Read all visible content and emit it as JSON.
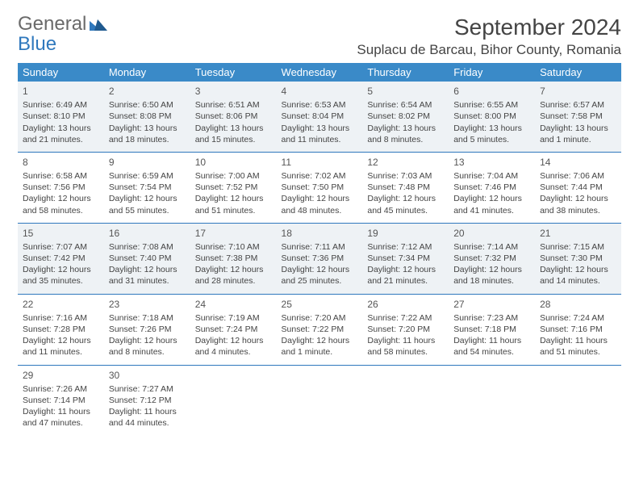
{
  "logo": {
    "text1": "General",
    "text2": "Blue"
  },
  "title": "September 2024",
  "location": "Suplacu de Barcau, Bihor County, Romania",
  "day_headers": [
    "Sunday",
    "Monday",
    "Tuesday",
    "Wednesday",
    "Thursday",
    "Friday",
    "Saturday"
  ],
  "colors": {
    "header_bg": "#3a8ac8",
    "header_text": "#ffffff",
    "border": "#2f78bd",
    "shaded_row": "#eef2f5",
    "logo_gray": "#6a6a6a",
    "logo_blue": "#2f78bd"
  },
  "weeks": [
    [
      {
        "n": "1",
        "sr": "6:49 AM",
        "ss": "8:10 PM",
        "dl": "13 hours and 21 minutes."
      },
      {
        "n": "2",
        "sr": "6:50 AM",
        "ss": "8:08 PM",
        "dl": "13 hours and 18 minutes."
      },
      {
        "n": "3",
        "sr": "6:51 AM",
        "ss": "8:06 PM",
        "dl": "13 hours and 15 minutes."
      },
      {
        "n": "4",
        "sr": "6:53 AM",
        "ss": "8:04 PM",
        "dl": "13 hours and 11 minutes."
      },
      {
        "n": "5",
        "sr": "6:54 AM",
        "ss": "8:02 PM",
        "dl": "13 hours and 8 minutes."
      },
      {
        "n": "6",
        "sr": "6:55 AM",
        "ss": "8:00 PM",
        "dl": "13 hours and 5 minutes."
      },
      {
        "n": "7",
        "sr": "6:57 AM",
        "ss": "7:58 PM",
        "dl": "13 hours and 1 minute."
      }
    ],
    [
      {
        "n": "8",
        "sr": "6:58 AM",
        "ss": "7:56 PM",
        "dl": "12 hours and 58 minutes."
      },
      {
        "n": "9",
        "sr": "6:59 AM",
        "ss": "7:54 PM",
        "dl": "12 hours and 55 minutes."
      },
      {
        "n": "10",
        "sr": "7:00 AM",
        "ss": "7:52 PM",
        "dl": "12 hours and 51 minutes."
      },
      {
        "n": "11",
        "sr": "7:02 AM",
        "ss": "7:50 PM",
        "dl": "12 hours and 48 minutes."
      },
      {
        "n": "12",
        "sr": "7:03 AM",
        "ss": "7:48 PM",
        "dl": "12 hours and 45 minutes."
      },
      {
        "n": "13",
        "sr": "7:04 AM",
        "ss": "7:46 PM",
        "dl": "12 hours and 41 minutes."
      },
      {
        "n": "14",
        "sr": "7:06 AM",
        "ss": "7:44 PM",
        "dl": "12 hours and 38 minutes."
      }
    ],
    [
      {
        "n": "15",
        "sr": "7:07 AM",
        "ss": "7:42 PM",
        "dl": "12 hours and 35 minutes."
      },
      {
        "n": "16",
        "sr": "7:08 AM",
        "ss": "7:40 PM",
        "dl": "12 hours and 31 minutes."
      },
      {
        "n": "17",
        "sr": "7:10 AM",
        "ss": "7:38 PM",
        "dl": "12 hours and 28 minutes."
      },
      {
        "n": "18",
        "sr": "7:11 AM",
        "ss": "7:36 PM",
        "dl": "12 hours and 25 minutes."
      },
      {
        "n": "19",
        "sr": "7:12 AM",
        "ss": "7:34 PM",
        "dl": "12 hours and 21 minutes."
      },
      {
        "n": "20",
        "sr": "7:14 AM",
        "ss": "7:32 PM",
        "dl": "12 hours and 18 minutes."
      },
      {
        "n": "21",
        "sr": "7:15 AM",
        "ss": "7:30 PM",
        "dl": "12 hours and 14 minutes."
      }
    ],
    [
      {
        "n": "22",
        "sr": "7:16 AM",
        "ss": "7:28 PM",
        "dl": "12 hours and 11 minutes."
      },
      {
        "n": "23",
        "sr": "7:18 AM",
        "ss": "7:26 PM",
        "dl": "12 hours and 8 minutes."
      },
      {
        "n": "24",
        "sr": "7:19 AM",
        "ss": "7:24 PM",
        "dl": "12 hours and 4 minutes."
      },
      {
        "n": "25",
        "sr": "7:20 AM",
        "ss": "7:22 PM",
        "dl": "12 hours and 1 minute."
      },
      {
        "n": "26",
        "sr": "7:22 AM",
        "ss": "7:20 PM",
        "dl": "11 hours and 58 minutes."
      },
      {
        "n": "27",
        "sr": "7:23 AM",
        "ss": "7:18 PM",
        "dl": "11 hours and 54 minutes."
      },
      {
        "n": "28",
        "sr": "7:24 AM",
        "ss": "7:16 PM",
        "dl": "11 hours and 51 minutes."
      }
    ],
    [
      {
        "n": "29",
        "sr": "7:26 AM",
        "ss": "7:14 PM",
        "dl": "11 hours and 47 minutes."
      },
      {
        "n": "30",
        "sr": "7:27 AM",
        "ss": "7:12 PM",
        "dl": "11 hours and 44 minutes."
      },
      null,
      null,
      null,
      null,
      null
    ]
  ],
  "labels": {
    "sunrise": "Sunrise:",
    "sunset": "Sunset:",
    "daylight": "Daylight:"
  }
}
